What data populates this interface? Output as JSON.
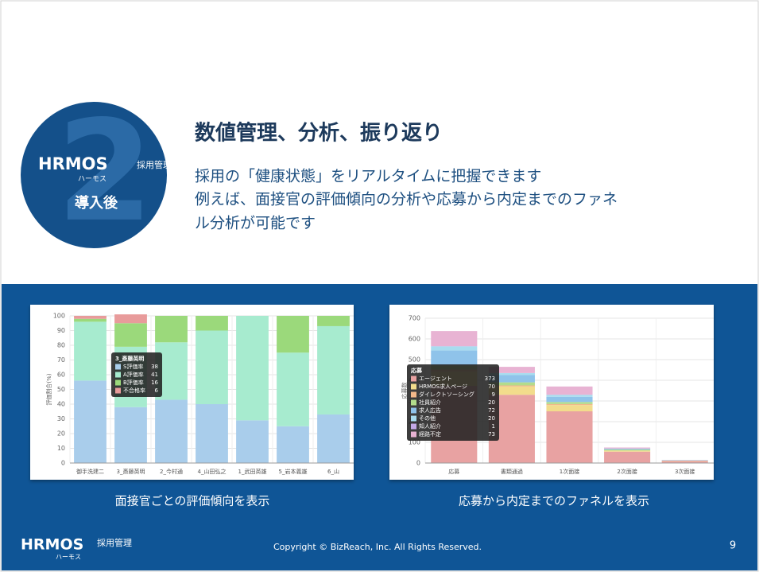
{
  "badge": {
    "number": 2,
    "logo": "HRMOS",
    "product": "採用管理",
    "reading": "ハーモス",
    "label": "導入後"
  },
  "header": {
    "title": "数値管理、分析、振り返り",
    "lines": [
      "採用の「健康状態」をリアルタイムに把握できます",
      "例えば、面接官の評価傾向の分析や応募から内定までのファネ",
      "ル分析が可能です"
    ]
  },
  "chart_data": [
    {
      "type": "bar",
      "stacked": true,
      "ylabel": "評価割合(%)",
      "categories": [
        "御手洗建二",
        "3_斎藤英明",
        "2_今村通",
        "4_山田弘之",
        "1_武田英雄",
        "5_岩本義雄",
        "6_山"
      ],
      "series": [
        {
          "name": "S評価率",
          "color": "#a9cdeb",
          "values": [
            56,
            38,
            43,
            40,
            29,
            25,
            33
          ]
        },
        {
          "name": "A評価率",
          "color": "#a7ebcf",
          "values": [
            40,
            41,
            39,
            50,
            71,
            50,
            60
          ]
        },
        {
          "name": "B評価率",
          "color": "#9bd97b",
          "values": [
            2,
            16,
            18,
            10,
            0,
            25,
            7
          ]
        },
        {
          "name": "不合格率",
          "color": "#e89b9b",
          "values": [
            2,
            6,
            0,
            0,
            0,
            0,
            0
          ]
        }
      ],
      "ylim": [
        0,
        100
      ],
      "yticks": [
        0,
        10,
        20,
        30,
        40,
        50,
        60,
        70,
        80,
        90,
        100
      ],
      "grid": true,
      "tooltip_index": 1,
      "tooltip_title": "3_斎藤英明"
    },
    {
      "type": "bar",
      "stacked": true,
      "ylabel": "応募数",
      "categories": [
        "応募",
        "書類通過",
        "1次面接",
        "2次面接",
        "3次面接"
      ],
      "series": [
        {
          "name": "エージェント",
          "color": "#e8a2a2",
          "values": [
            373,
            330,
            250,
            55,
            10
          ]
        },
        {
          "name": "HRMOS求人ページ",
          "color": "#f2dc8c",
          "values": [
            70,
            40,
            30,
            5,
            2
          ]
        },
        {
          "name": "ダイレクトソーシング",
          "color": "#f3b98a",
          "values": [
            9,
            5,
            5,
            0,
            0
          ]
        },
        {
          "name": "社員紹介",
          "color": "#b3dc8c",
          "values": [
            20,
            15,
            10,
            5,
            0
          ]
        },
        {
          "name": "求人広告",
          "color": "#8fc3ea",
          "values": [
            72,
            35,
            25,
            5,
            2
          ]
        },
        {
          "name": "その他",
          "color": "#a9dcef",
          "values": [
            20,
            10,
            10,
            0,
            0
          ]
        },
        {
          "name": "知人紹介",
          "color": "#c3a9e6",
          "values": [
            1,
            0,
            0,
            0,
            0
          ]
        },
        {
          "name": "経路不定",
          "color": "#e8b3d3",
          "values": [
            73,
            30,
            40,
            5,
            1
          ]
        }
      ],
      "ylim": [
        0,
        700
      ],
      "yticks": [
        0,
        100,
        200,
        300,
        400,
        500,
        600,
        700
      ],
      "grid": true,
      "tooltip_index": 0,
      "tooltip_title": "応募"
    }
  ],
  "captions": [
    "面接官ごとの評価傾向を表示",
    "応募から内定までのファネルを表示"
  ],
  "footer": {
    "logo": "HRMOS",
    "product": "採用管理",
    "reading": "ハーモス",
    "copyright": "Copyright © BizReach, Inc. All Rights Reserved.",
    "page": 9
  }
}
